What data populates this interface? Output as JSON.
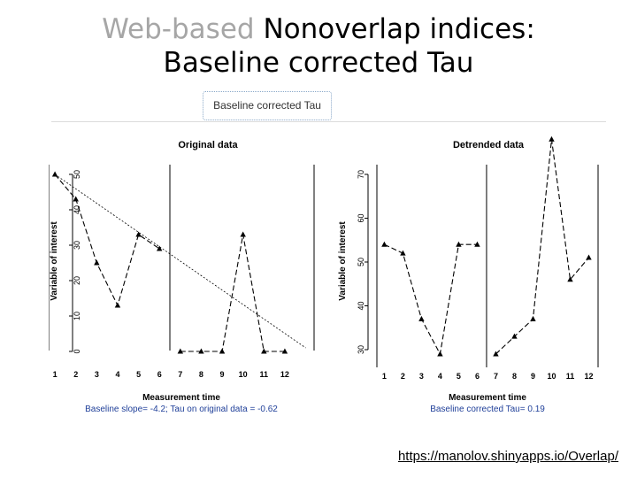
{
  "slide": {
    "title_muted": "Web-based",
    "title_main": "Nonoverlap indices:",
    "title_line2": "Baseline corrected Tau"
  },
  "tab": {
    "label": "Baseline corrected Tau"
  },
  "footer": {
    "url": "https://manolov.shinyapps.io/Overlap/"
  },
  "chart_data": [
    {
      "type": "line",
      "title": "Original data",
      "xlabel": "Measurement time",
      "ylabel": "Variable of interest",
      "caption": "Baseline slope= -4.2; Tau on original data = -0.62",
      "x": [
        1,
        2,
        3,
        4,
        5,
        6,
        7,
        8,
        9,
        10,
        11,
        12
      ],
      "values": [
        50,
        43,
        25,
        13,
        33,
        29,
        0,
        0,
        0,
        33,
        0,
        0
      ],
      "phase_change_after": 6,
      "trend_line": {
        "from": [
          1,
          50
        ],
        "to": [
          13,
          1
        ]
      },
      "xlim": [
        0.7,
        13.4
      ],
      "ylim": [
        0,
        50
      ],
      "yticks": [
        0,
        10,
        20,
        30,
        40,
        50
      ]
    },
    {
      "type": "line",
      "title": "Detrended data",
      "xlabel": "Measurement time",
      "ylabel": "Variable of interest",
      "caption": "Baseline corrected Tau= 0.19",
      "x": [
        1,
        2,
        3,
        4,
        5,
        6,
        7,
        8,
        9,
        10,
        11,
        12
      ],
      "values": [
        54,
        52,
        37,
        29,
        54,
        54,
        29,
        33,
        37,
        78,
        46,
        51
      ],
      "phase_change_after": 6,
      "xlim": [
        0.6,
        12.5
      ],
      "ylim": [
        30,
        70
      ],
      "yticks": [
        30,
        40,
        50,
        60,
        70
      ]
    }
  ]
}
